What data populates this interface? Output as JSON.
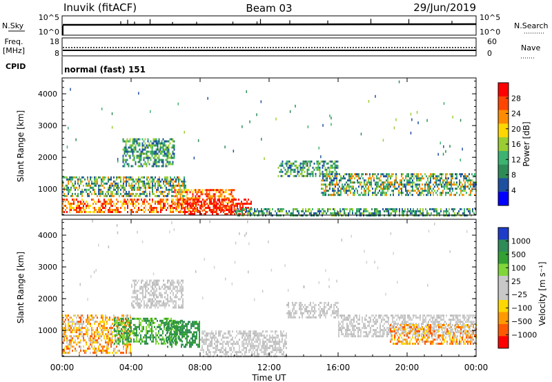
{
  "header": {
    "station": "Inuvik (fitACF)",
    "beam": "Beam 03",
    "date": "29/Jun/2019"
  },
  "panels": {
    "nsky": {
      "label": "N.Sky",
      "left_ticks": [
        "10^5",
        "10^0"
      ],
      "right_ticks": [
        "10^5",
        "10^0"
      ],
      "right_label": "N.Search"
    },
    "freq": {
      "label_lines": [
        "Freq.",
        "[MHz]"
      ],
      "left_ticks": [
        "18",
        "8"
      ],
      "right_ticks": [
        "60",
        "0"
      ],
      "right_label": "Nave"
    },
    "cpid": {
      "label": "CPID",
      "value": "normal (fast) 151"
    }
  },
  "colorbars": {
    "power": {
      "title": "Power [dB]",
      "ticks": [
        "28",
        "24",
        "20",
        "16",
        "12",
        "8",
        "4"
      ],
      "colors": [
        "#ff0000",
        "#ff4500",
        "#ff8c00",
        "#ffd700",
        "#9acd32",
        "#3cb371",
        "#2e8b57",
        "#1e50a0",
        "#0000ff"
      ]
    },
    "velocity": {
      "title": "Velocity [m s⁻¹]",
      "ticks": [
        "1000",
        "500",
        "100",
        "25",
        "−25",
        "−100",
        "−500",
        "−1000"
      ],
      "colors": [
        "#1e3cc8",
        "#2e8b57",
        "#32a032",
        "#7fd63a",
        "#c8c8c8",
        "#c8c8c8",
        "#ffd700",
        "#ff9900",
        "#ff5a00",
        "#ff0000"
      ]
    }
  },
  "chart_data": [
    {
      "type": "heatmap",
      "name": "power",
      "ylabel": "Slant Range [km]",
      "yticks": [
        "1000",
        "2000",
        "3000",
        "4000"
      ],
      "ylim": [
        180,
        4500
      ],
      "xlim": [
        0,
        24
      ],
      "xticks": [
        "00:00",
        "04:00",
        "08:00",
        "12:00",
        "16:00",
        "20:00",
        "00:00"
      ],
      "echo_regions": [
        {
          "t": [
            0,
            7.2
          ],
          "r": [
            750,
            1400
          ],
          "level": "mid"
        },
        {
          "t": [
            0,
            7
          ],
          "r": [
            300,
            700
          ],
          "level": "high"
        },
        {
          "t": [
            3.5,
            6.5
          ],
          "r": [
            1750,
            2600
          ],
          "level": "low"
        },
        {
          "t": [
            6.5,
            10
          ],
          "r": [
            300,
            1000
          ],
          "level": "high"
        },
        {
          "t": [
            7,
            11
          ],
          "r": [
            200,
            700
          ],
          "level": "max"
        },
        {
          "t": [
            12.5,
            16
          ],
          "r": [
            1400,
            1900
          ],
          "level": "low"
        },
        {
          "t": [
            15,
            24
          ],
          "r": [
            800,
            1500
          ],
          "level": "mid"
        },
        {
          "t": [
            10,
            24
          ],
          "r": [
            200,
            400
          ],
          "level": "low"
        }
      ]
    },
    {
      "type": "heatmap",
      "name": "velocity",
      "ylabel": "Slant Range [km]",
      "yticks": [
        "1000",
        "2000",
        "3000",
        "4000"
      ],
      "ylim": [
        180,
        4500
      ],
      "xlim": [
        0,
        24
      ],
      "xticks": [
        "00:00",
        "04:00",
        "08:00",
        "12:00",
        "16:00",
        "20:00",
        "00:00"
      ],
      "xlabel": "Time UT",
      "echo_regions": [
        {
          "t": [
            0,
            4
          ],
          "r": [
            300,
            1500
          ],
          "level": "neg"
        },
        {
          "t": [
            3,
            7
          ],
          "r": [
            600,
            1400
          ],
          "level": "pos"
        },
        {
          "t": [
            6,
            8
          ],
          "r": [
            500,
            1300
          ],
          "level": "pos_strong"
        },
        {
          "t": [
            4,
            7
          ],
          "r": [
            1700,
            2600
          ],
          "level": "zero"
        },
        {
          "t": [
            8,
            13
          ],
          "r": [
            200,
            1000
          ],
          "level": "zero"
        },
        {
          "t": [
            13,
            16
          ],
          "r": [
            1400,
            1900
          ],
          "level": "zero"
        },
        {
          "t": [
            16,
            24
          ],
          "r": [
            800,
            1500
          ],
          "level": "zero"
        },
        {
          "t": [
            19,
            24
          ],
          "r": [
            600,
            1200
          ],
          "level": "neg"
        }
      ]
    }
  ]
}
